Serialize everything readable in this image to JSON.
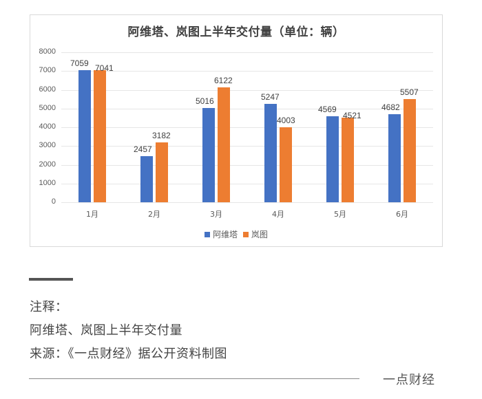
{
  "chart_data": {
    "type": "bar",
    "title": "阿维塔、岚图上半年交付量（单位：辆）",
    "categories": [
      "1月",
      "2月",
      "3月",
      "4月",
      "5月",
      "6月"
    ],
    "series": [
      {
        "name": "阿维塔",
        "color": "#4472c4",
        "values": [
          7059,
          2457,
          5016,
          5247,
          4569,
          4682
        ]
      },
      {
        "name": "岚图",
        "color": "#ed7d31",
        "values": [
          7041,
          3182,
          6122,
          4003,
          4521,
          5507
        ]
      }
    ],
    "xlabel": "",
    "ylabel": "",
    "ylim": [
      0,
      8000
    ],
    "yticks": [
      0,
      1000,
      2000,
      3000,
      4000,
      5000,
      6000,
      7000,
      8000
    ],
    "grid": true,
    "legend_position": "bottom",
    "data_labels": true
  },
  "chart": {
    "title": "阿维塔、岚图上半年交付量（单位：辆）",
    "legend": [
      {
        "label": "阿维塔",
        "color": "#4472c4"
      },
      {
        "label": "岚图",
        "color": "#ed7d31"
      }
    ]
  },
  "notes": {
    "heading": "注释：",
    "line1": "阿维塔、岚图上半年交付量",
    "line2": "来源：《一点财经》据公开资料制图"
  },
  "footer": {
    "brand": "一点财经"
  }
}
